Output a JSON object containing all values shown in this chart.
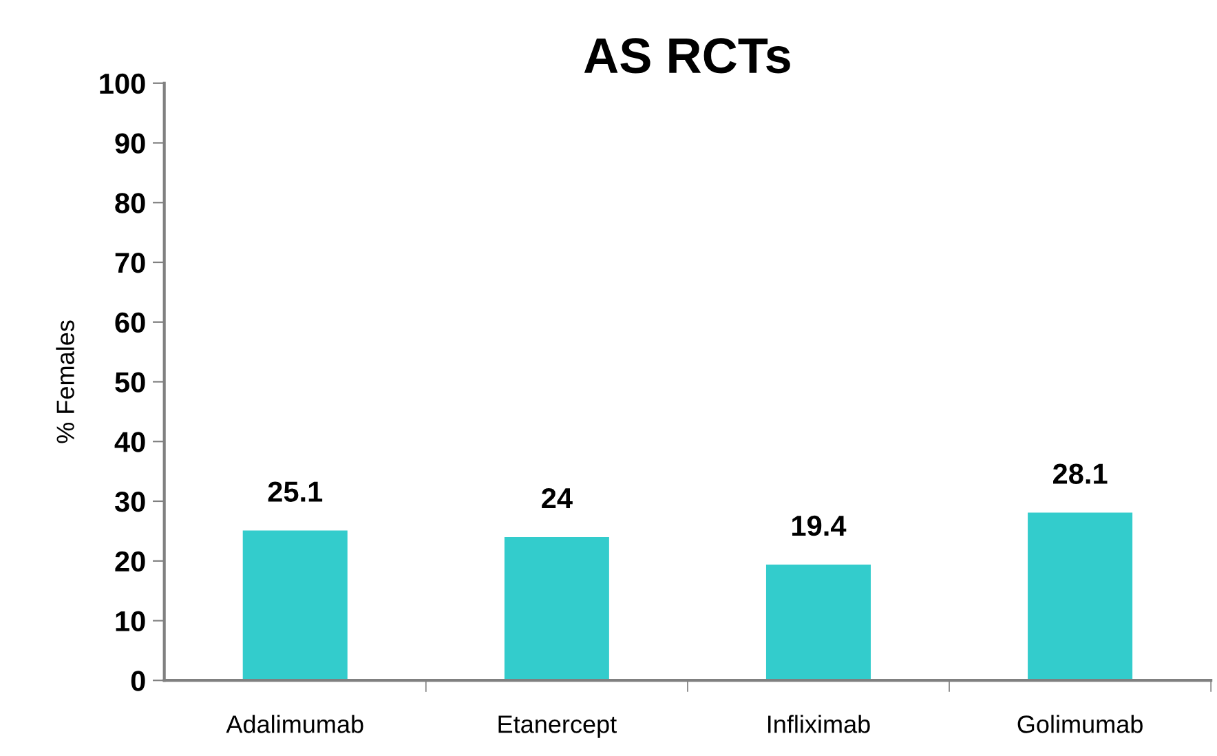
{
  "chart_data": {
    "type": "bar",
    "title": "AS RCTs",
    "ylabel": "% Females",
    "categories": [
      "Adalimumab",
      "Etanercept",
      "Infliximab",
      "Golimumab"
    ],
    "values": [
      25.1,
      24,
      19.4,
      28.1
    ],
    "color": "#33cccc",
    "ylim": [
      0,
      100
    ],
    "yticks": [
      0,
      10,
      20,
      30,
      40,
      50,
      60,
      70,
      80,
      90,
      100
    ],
    "data_labels": true,
    "grid": false,
    "legend": false
  }
}
